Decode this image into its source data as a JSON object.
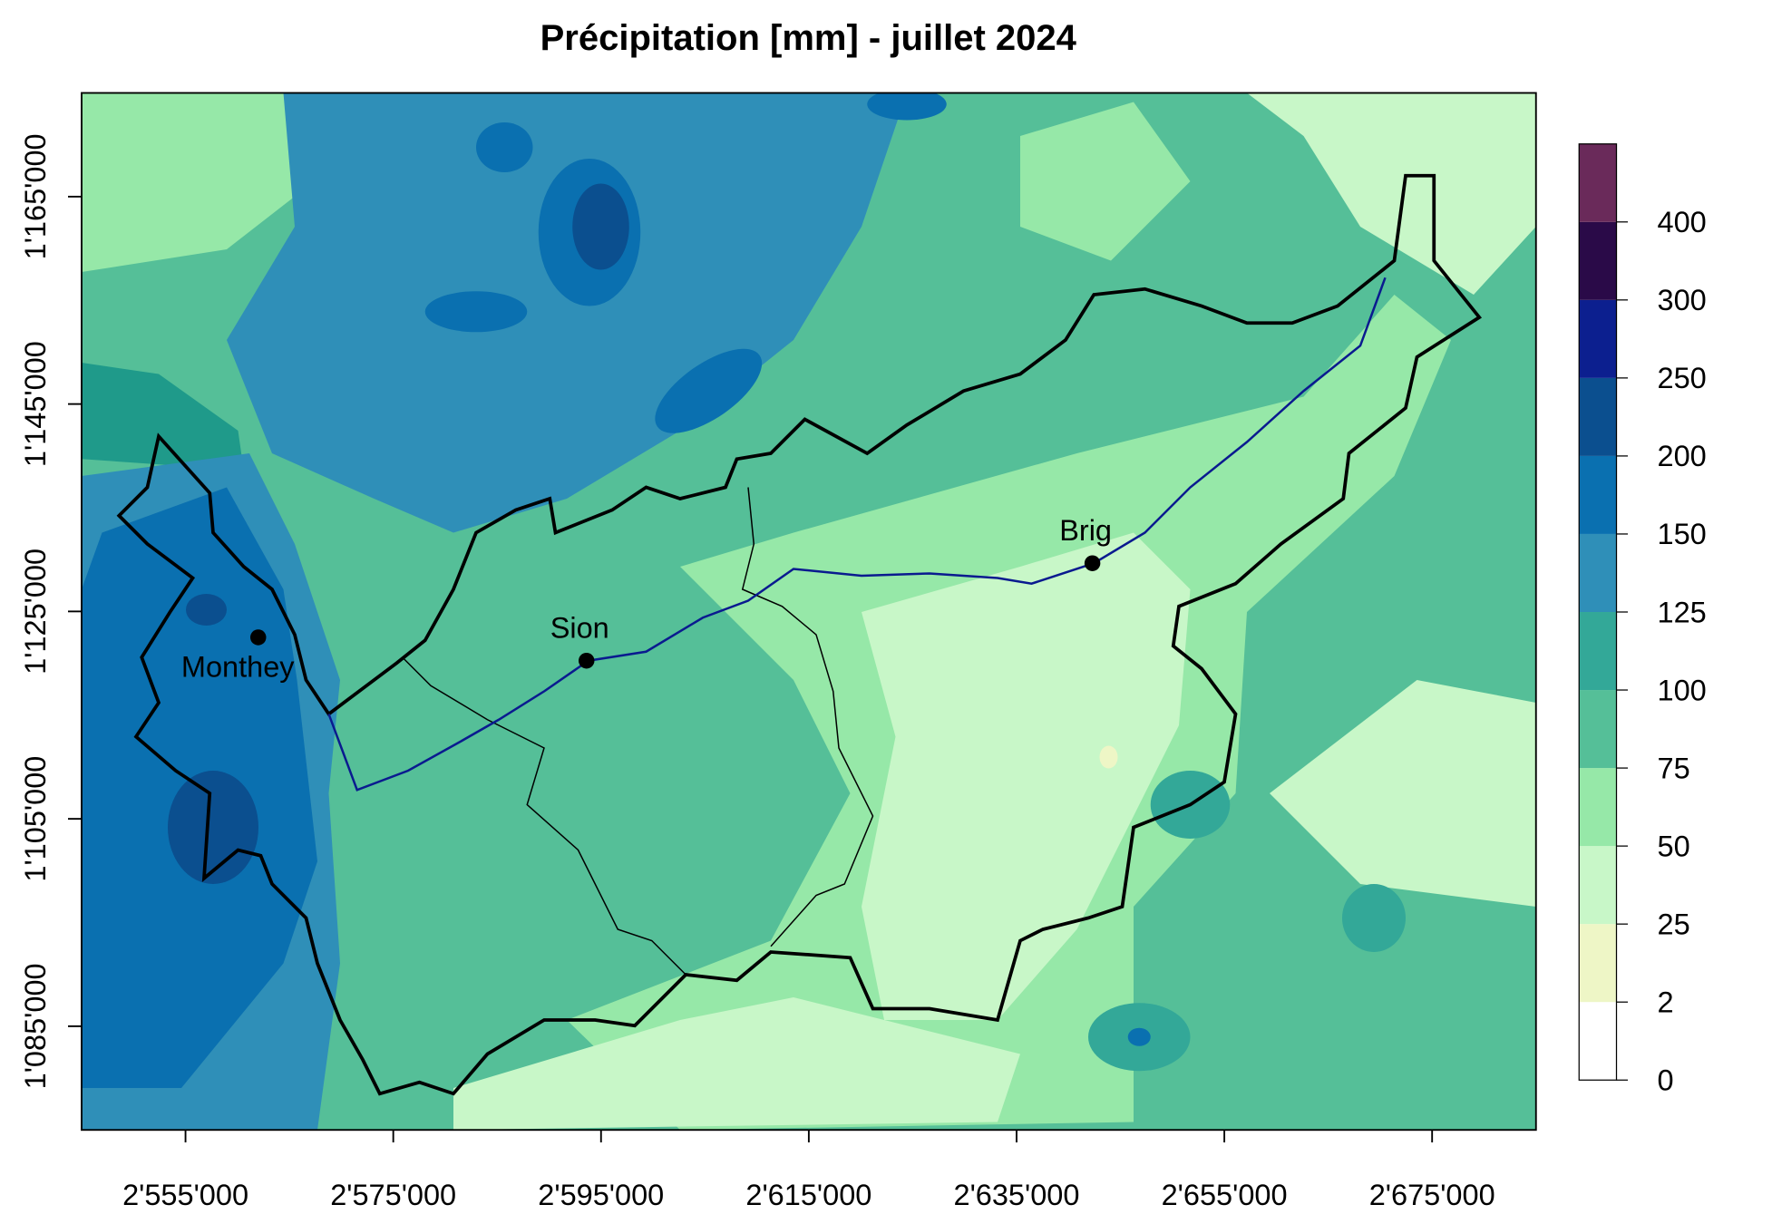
{
  "chart_data": {
    "type": "map",
    "title": "Précipitation [mm] - juillet 2024",
    "xlim": [
      2545000,
      2685000
    ],
    "ylim": [
      1075000,
      1175000
    ],
    "xticks": [
      {
        "value": 2555000,
        "label": "2'555'000"
      },
      {
        "value": 2575000,
        "label": "2'575'000"
      },
      {
        "value": 2595000,
        "label": "2'595'000"
      },
      {
        "value": 2615000,
        "label": "2'615'000"
      },
      {
        "value": 2635000,
        "label": "2'635'000"
      },
      {
        "value": 2655000,
        "label": "2'655'000"
      },
      {
        "value": 2675000,
        "label": "2'675'000"
      }
    ],
    "yticks": [
      {
        "value": 1085000,
        "label": "1'085'000"
      },
      {
        "value": 1105000,
        "label": "1'105'000"
      },
      {
        "value": 1125000,
        "label": "1'125'000"
      },
      {
        "value": 1145000,
        "label": "1'145'000"
      },
      {
        "value": 1165000,
        "label": "1'165'000"
      }
    ],
    "points": [
      {
        "name": "Monthey",
        "x": 2562000,
        "y": 1122500
      },
      {
        "name": "Sion",
        "x": 2593600,
        "y": 1120250
      },
      {
        "name": "Brig",
        "x": 2642300,
        "y": 1129650
      }
    ],
    "legend": {
      "breaks": [
        0,
        2,
        25,
        50,
        75,
        100,
        125,
        150,
        200,
        250,
        300,
        400
      ],
      "colors": [
        "#ffffff",
        "#eef6c6",
        "#c8f7c8",
        "#96e8a8",
        "#55bf98",
        "#33a898",
        "#2f8fb8",
        "#0a70b0",
        "#0b4f8f",
        "#0c1f8f",
        "#2a0a48",
        "#6a2a5a"
      ]
    }
  }
}
